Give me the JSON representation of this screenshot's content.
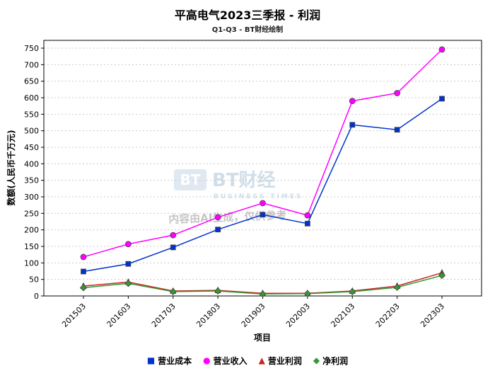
{
  "chart_data": {
    "type": "line",
    "title": "平高电气2023三季报 - 利润",
    "subtitle": "Q1-Q3 - BT财经绘制",
    "xlabel": "项目",
    "ylabel": "数额(人民币千万元)",
    "categories": [
      "201503",
      "201603",
      "201703",
      "201803",
      "201903",
      "202003",
      "202103",
      "202203",
      "202303"
    ],
    "ylim": [
      0,
      750
    ],
    "yticks": [
      0,
      50,
      100,
      150,
      200,
      250,
      300,
      350,
      400,
      450,
      500,
      550,
      600,
      650,
      700,
      750
    ],
    "grid": true,
    "legend_position": "bottom",
    "series": [
      {
        "name": "营业成本",
        "marker": "square",
        "color": "#0033cc",
        "values": [
          74,
          97,
          147,
          201,
          246,
          219,
          518,
          503,
          597
        ]
      },
      {
        "name": "营业收入",
        "marker": "circle",
        "color": "#ff00ff",
        "values": [
          118,
          157,
          184,
          238,
          281,
          244,
          590,
          614,
          746
        ]
      },
      {
        "name": "营业利润",
        "marker": "triangle",
        "color": "#cc2222",
        "values": [
          30,
          42,
          15,
          17,
          8,
          8,
          15,
          30,
          70
        ]
      },
      {
        "name": "净利润",
        "marker": "diamond",
        "color": "#339933",
        "values": [
          25,
          38,
          13,
          15,
          6,
          7,
          13,
          26,
          62
        ]
      }
    ],
    "watermark": {
      "logo_abbr": "BT",
      "logo_text": "BT财经",
      "logo_sub": "BUSINESS TIMES",
      "disclaimer": "内容由AI生成，仅供参考"
    }
  }
}
